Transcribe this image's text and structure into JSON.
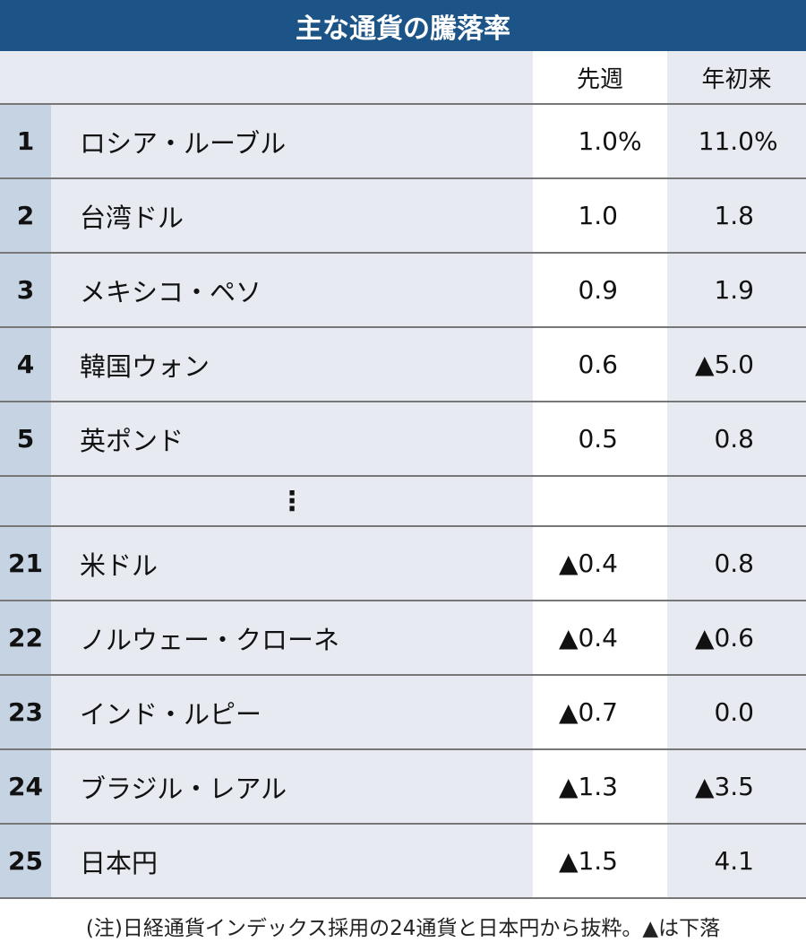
{
  "chart_data": {
    "type": "table",
    "title": "主な通貨の騰落率",
    "columns": [
      "",
      "",
      "先週",
      "年初来"
    ],
    "unit_suffix": "%",
    "ellipsis": "⋮",
    "rows": [
      {
        "rank": "1",
        "name": "ロシア・ルーブル",
        "week": "1.0",
        "ytd": "11.0"
      },
      {
        "rank": "2",
        "name": "台湾ドル",
        "week": "1.0",
        "ytd": "1.8"
      },
      {
        "rank": "3",
        "name": "メキシコ・ペソ",
        "week": "0.9",
        "ytd": "1.9"
      },
      {
        "rank": "4",
        "name": "韓国ウォン",
        "week": "0.6",
        "ytd": "▲5.0"
      },
      {
        "rank": "5",
        "name": "英ポンド",
        "week": "0.5",
        "ytd": "0.8"
      },
      {
        "rank": "21",
        "name": "米ドル",
        "week": "▲0.4",
        "ytd": "0.8"
      },
      {
        "rank": "22",
        "name": "ノルウェー・クローネ",
        "week": "▲0.4",
        "ytd": "▲0.6"
      },
      {
        "rank": "23",
        "name": "インド・ルピー",
        "week": "▲0.7",
        "ytd": "0.0"
      },
      {
        "rank": "24",
        "name": "ブラジル・レアル",
        "week": "▲1.3",
        "ytd": "▲3.5"
      },
      {
        "rank": "25",
        "name": "日本円",
        "week": "▲1.5",
        "ytd": "4.1"
      }
    ],
    "note": "(注)日経通貨インデックス採用の24通貨と日本円から抜粋。▲は下落",
    "colors": {
      "title_bg": "#1d5488",
      "rank_bg": "#c6d3e3",
      "cell_bg": "#e7ebf1"
    }
  }
}
